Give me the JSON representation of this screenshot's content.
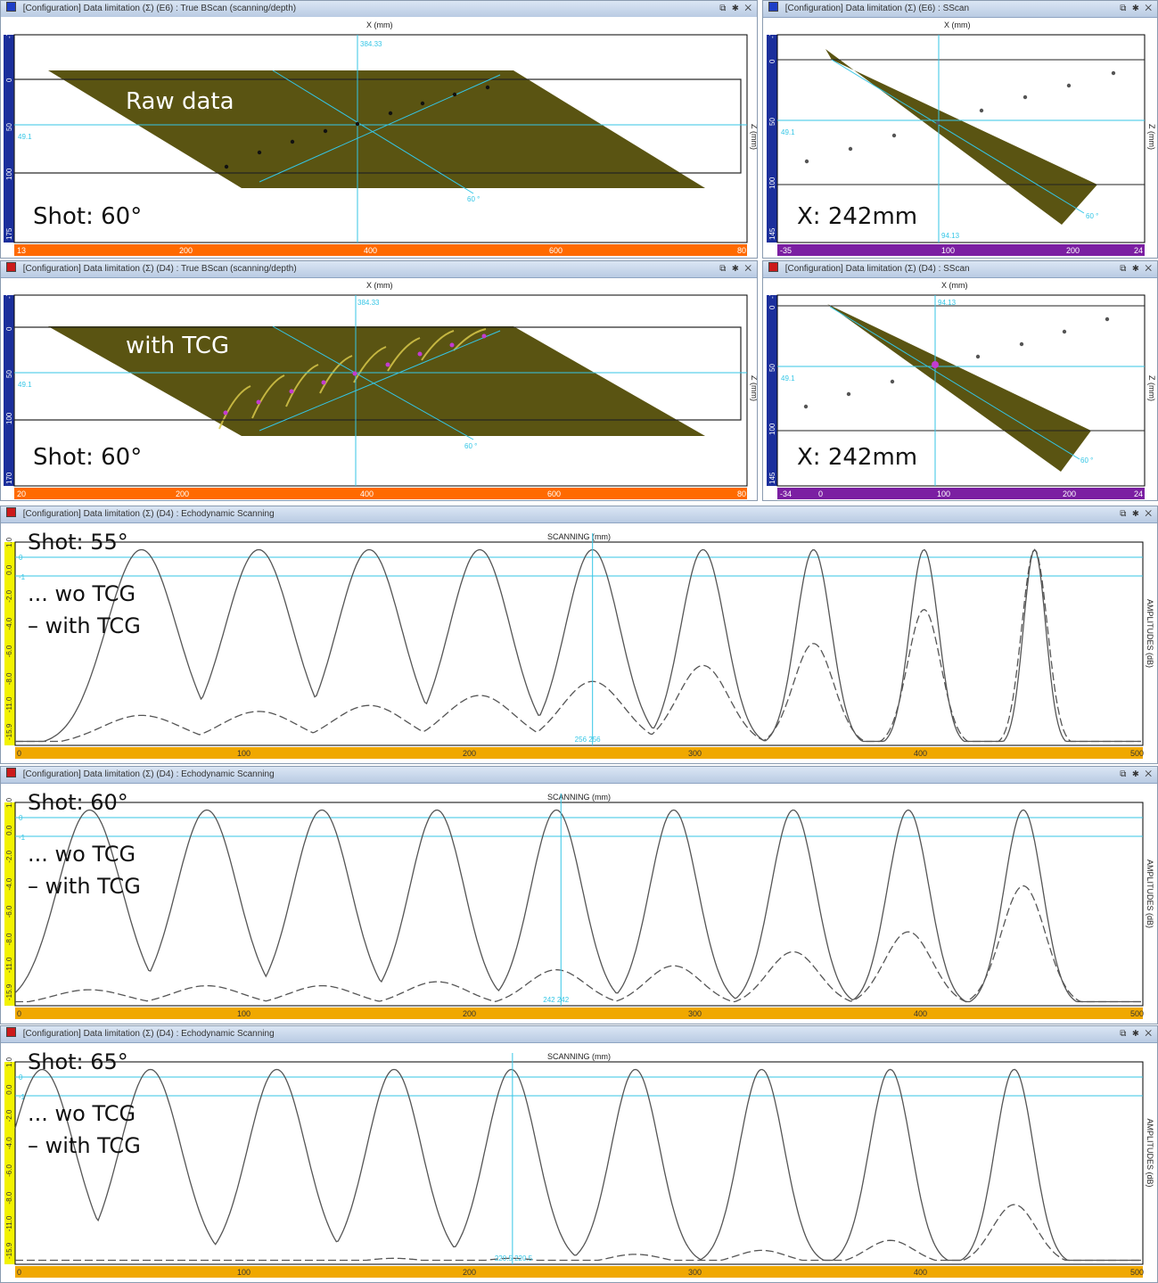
{
  "panels": {
    "bscan_top": {
      "title": "[Configuration] Data limitation (Σ) (E6) : True BScan (scanning/depth)",
      "x_axis": "X (mm)",
      "z_axis": "Z (mm)",
      "cursor_x": "384.33",
      "cursor_z": "49.1",
      "angle": "60 °",
      "x_ticks": [
        "13",
        "200",
        "400",
        "600",
        "80"
      ],
      "y_ticks": [
        "-7",
        "0",
        "50",
        "100",
        "175"
      ],
      "overlay_label": "Raw data",
      "shot_label": "Shot: 60°",
      "color_bar": "#ff6a00",
      "square_color": "#1e3fc7"
    },
    "sscan_top": {
      "title": "[Configuration] Data limitation (Σ) (E6) : SScan",
      "x_axis": "X (mm)",
      "z_axis": "Z (mm)",
      "cursor_z": "49.1",
      "cursor_x": "94.13",
      "angle": "60 °",
      "x_ticks": [
        "-35",
        "100",
        "200",
        "24"
      ],
      "y_ticks": [
        "-7",
        "0",
        "50",
        "100",
        "145"
      ],
      "shot_label": "X: 242mm",
      "color_bar": "#7b1fa2",
      "square_color": "#1e3fc7"
    },
    "bscan_mid": {
      "title": "[Configuration] Data limitation (Σ) (D4) : True BScan (scanning/depth)",
      "x_axis": "X (mm)",
      "z_axis": "Z (mm)",
      "cursor_x": "384.33",
      "cursor_z": "49.1",
      "angle": "60 °",
      "x_ticks": [
        "20",
        "200",
        "400",
        "600",
        "80"
      ],
      "y_ticks": [
        "-7",
        "0",
        "50",
        "100",
        "170"
      ],
      "overlay_label": "with TCG",
      "shot_label": "Shot: 60°",
      "color_bar": "#ff6a00",
      "square_color": "#cc1b1b"
    },
    "sscan_mid": {
      "title": "[Configuration] Data limitation (Σ) (D4) : SScan",
      "x_axis": "X (mm)",
      "z_axis": "Z (mm)",
      "cursor_z": "49.1",
      "cursor_x": "94.13",
      "angle": "60 °",
      "x_ticks": [
        "-34",
        "0",
        "100",
        "200",
        "24"
      ],
      "y_ticks": [
        "-7",
        "0",
        "50",
        "100",
        "145"
      ],
      "shot_label": "X: 242mm",
      "color_bar": "#7b1fa2",
      "square_color": "#cc1b1b"
    }
  },
  "echo_panels": [
    {
      "title": "[Configuration] Data limitation (Σ) (D4) : Echodynamic Scanning",
      "x_axis": "SCANNING (mm)",
      "y_axis": "AMPLITUDES (dB)",
      "shot_label": "Shot: 55°",
      "legend_wo": "... wo TCG",
      "legend_with": "– with TCG",
      "cursor_label": "256  256",
      "x_ticks": [
        "0",
        "100",
        "200",
        "300",
        "400",
        "500"
      ],
      "y_ticks": [
        "1.0",
        "0.0",
        "-2.0",
        "-4.0",
        "-6.0",
        "-8.0",
        "-11.0",
        "-15.9"
      ],
      "ref_labels": [
        "0",
        "-1"
      ]
    },
    {
      "title": "[Configuration] Data limitation (Σ) (D4) : Echodynamic Scanning",
      "x_axis": "SCANNING (mm)",
      "y_axis": "AMPLITUDES (dB)",
      "shot_label": "Shot: 60°",
      "legend_wo": "... wo TCG",
      "legend_with": "– with TCG",
      "cursor_label": "242  242",
      "x_ticks": [
        "0",
        "100",
        "200",
        "300",
        "400",
        "500"
      ],
      "y_ticks": [
        "1.0",
        "0.0",
        "-2.0",
        "-4.0",
        "-6.0",
        "-8.0",
        "-11.0",
        "-15.9"
      ],
      "ref_labels": [
        "0",
        "-1"
      ]
    },
    {
      "title": "[Configuration] Data limitation (Σ) (D4) : Echodynamic Scanning",
      "x_axis": "SCANNING (mm)",
      "y_axis": "AMPLITUDES (dB)",
      "shot_label": "Shot: 65°",
      "legend_wo": "... wo TCG",
      "legend_with": "– with TCG",
      "cursor_label": "220.5  220.5",
      "x_ticks": [
        "0",
        "100",
        "200",
        "300",
        "400",
        "500"
      ],
      "y_ticks": [
        "1.0",
        "0.0",
        "-2.0",
        "-4.0",
        "-6.0",
        "-8.0",
        "-11.0",
        "-15.9"
      ],
      "ref_labels": [
        "0",
        "-1"
      ]
    }
  ],
  "window_controls": "⧉ ✱ ✕",
  "colors": {
    "olive": "#5a5412",
    "cursor": "#35c6e6",
    "ruler_blue": "#1b2f9c",
    "ruler_yellow": "#f2f200",
    "orange_bar": "#ff6a00",
    "amber_bar": "#f0a800"
  },
  "chart_data": [
    {
      "type": "line",
      "title": "Shot: 55°",
      "xlabel": "SCANNING (mm)",
      "ylabel": "AMPLITUDES (dB)",
      "xlim": [
        0,
        500
      ],
      "series": [
        {
          "name": "wo TCG",
          "peaks_x": [
            56,
            108,
            157,
            206,
            256,
            305,
            354,
            403,
            452
          ],
          "peak_level": 0.98,
          "width": [
            22,
            21,
            20,
            19,
            17,
            14,
            11,
            9,
            7
          ]
        },
        {
          "name": "with TCG",
          "peaks_x": [
            56,
            108,
            157,
            206,
            256,
            305,
            354,
            403,
            452
          ],
          "peak_level": [
            0.15,
            0.17,
            0.2,
            0.25,
            0.32,
            0.4,
            0.51,
            0.68,
            0.98
          ]
        }
      ],
      "cursor_x": 256
    },
    {
      "type": "line",
      "title": "Shot: 60°",
      "xlabel": "SCANNING (mm)",
      "ylabel": "AMPLITUDES (dB)",
      "xlim": [
        0,
        500
      ],
      "series": [
        {
          "name": "wo TCG",
          "peaks_x": [
            33,
            85,
            136,
            187,
            240,
            292,
            345,
            396,
            447
          ],
          "peak_level": 0.98
        },
        {
          "name": "with TCG",
          "peaks_x": [
            33,
            85,
            136,
            187,
            240,
            292,
            345,
            396,
            447
          ],
          "peak_level": [
            0.08,
            0.1,
            0.1,
            0.12,
            0.18,
            0.2,
            0.27,
            0.37,
            0.6
          ]
        }
      ],
      "cursor_x": 242
    },
    {
      "type": "line",
      "title": "Shot: 65°",
      "xlabel": "SCANNING (mm)",
      "ylabel": "AMPLITUDES (dB)",
      "xlim": [
        0,
        500
      ],
      "series": [
        {
          "name": "wo TCG",
          "peaks_x": [
            12,
            60,
            116,
            168,
            220,
            275,
            331,
            388,
            443
          ],
          "peak_level": 0.98
        },
        {
          "name": "with TCG",
          "peaks_x": [
            12,
            60,
            116,
            168,
            220,
            275,
            331,
            388,
            443
          ],
          "peak_level": [
            0.02,
            0.02,
            0.02,
            0.03,
            0.03,
            0.05,
            0.07,
            0.12,
            0.3
          ]
        }
      ],
      "cursor_x": 220.5
    }
  ]
}
